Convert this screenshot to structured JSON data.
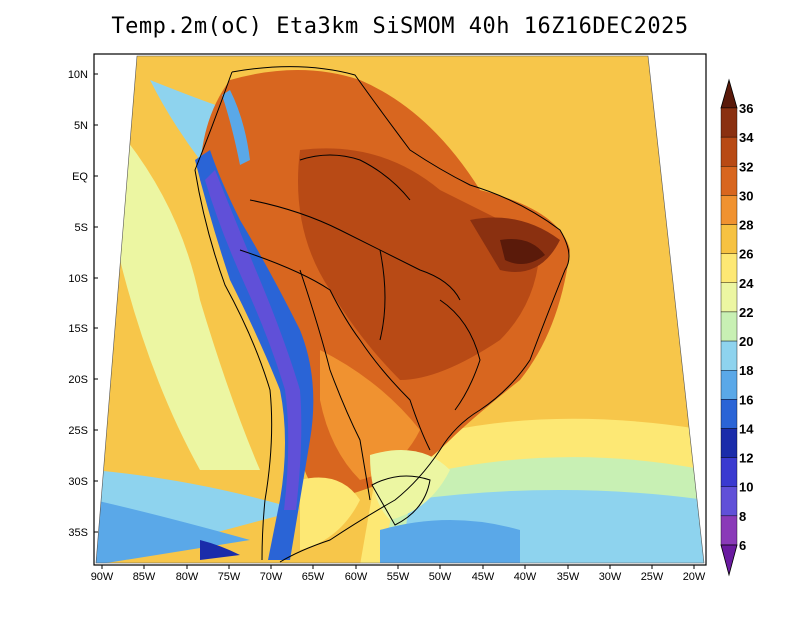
{
  "title": "Temp.2m(oC) Eta3km SiSMOM 40h 16Z16DEC2025",
  "map": {
    "lat_labels": [
      "10N",
      "5N",
      "EQ",
      "5S",
      "10S",
      "15S",
      "20S",
      "25S",
      "30S",
      "35S"
    ],
    "lon_labels": [
      "90W",
      "85W",
      "80W",
      "75W",
      "70W",
      "65W",
      "60W",
      "55W",
      "50W",
      "45W",
      "40W",
      "35W",
      "30W",
      "25W",
      "20W"
    ]
  },
  "colorbar": {
    "labels": [
      "36",
      "34",
      "32",
      "30",
      "28",
      "26",
      "24",
      "22",
      "20",
      "18",
      "16",
      "14",
      "12",
      "10",
      "8",
      "6"
    ],
    "colors": [
      "#5a1a0a",
      "#8a3010",
      "#b84a15",
      "#d8661f",
      "#f09230",
      "#f6c242",
      "#fde874",
      "#ecf6a2",
      "#c8f0b4",
      "#8ed3ee",
      "#5aa8e8",
      "#2a64d6",
      "#1a2caa",
      "#3a3ad0",
      "#6050d8",
      "#8a3ab8",
      "#6a1aa0"
    ]
  }
}
